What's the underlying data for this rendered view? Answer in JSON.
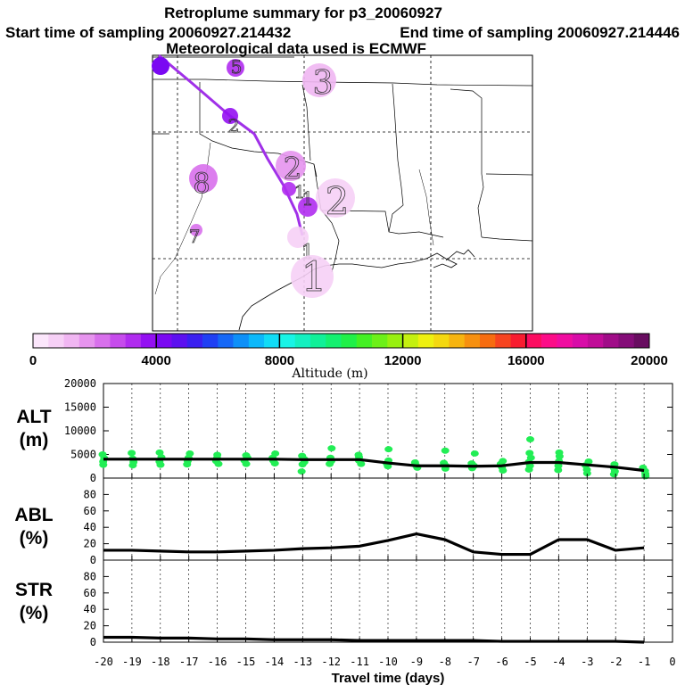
{
  "title": "Retroplume summary for p3_20060927",
  "sampling": {
    "start_label": "Start time of sampling 20060927.214432",
    "end_label": "End time of sampling 20060927.214446"
  },
  "meteo_label": "Meteorological data used is ECMWF",
  "colors": {
    "trajectory": "#a030e8",
    "cluster_light": "#f4c4f4",
    "cluster_mid": "#d890ee",
    "cluster_purple": "#b050ec",
    "cluster_deep": "#8010f0",
    "altitude_dots": "#22ee55",
    "line": "#000000"
  },
  "map": {
    "description_labels": [],
    "clusters": [
      {
        "label": "5",
        "altitude": 3200
      },
      {
        "label": "3",
        "altitude": 1400
      },
      {
        "label": "2",
        "altitude": 3800
      },
      {
        "label": "2",
        "altitude": 1800
      },
      {
        "label": "8",
        "altitude": 2000
      },
      {
        "label": "1",
        "altitude": 3000
      },
      {
        "label": "2",
        "altitude": 600
      },
      {
        "label": "7",
        "altitude": 2300
      },
      {
        "label": "1",
        "altitude": 3200
      },
      {
        "label": "1",
        "altitude": 800
      },
      {
        "label": "1",
        "altitude": 600
      }
    ]
  },
  "colorbar": {
    "ticks": [
      "0",
      "4000",
      "8000",
      "12000",
      "16000",
      "20000"
    ],
    "title": "Altitude (m)",
    "min": 0,
    "max": 20000,
    "colors": [
      "#fbe6fb",
      "#f6d0f6",
      "#f0b6f2",
      "#e694ee",
      "#d870ec",
      "#c64cec",
      "#b02cef",
      "#9410f2",
      "#7a08f2",
      "#5c10f0",
      "#3a20f0",
      "#2040f4",
      "#1668f6",
      "#0e90f8",
      "#0cb8fa",
      "#10dcf6",
      "#18f4e6",
      "#14f0c0",
      "#10f098",
      "#14f070",
      "#20f048",
      "#44f024",
      "#6cf018",
      "#98f010",
      "#c4f010",
      "#eef010",
      "#f4d810",
      "#f6b410",
      "#f69010",
      "#f66c10",
      "#f64420",
      "#f81c30",
      "#fc0c60",
      "#fc0c88",
      "#f00ca0",
      "#d80ca8",
      "#c00c98",
      "#a00c88",
      "#840c78",
      "#680c60"
    ]
  },
  "chart_data": [
    {
      "type": "line",
      "panel": "ALT",
      "ylabel": "ALT\n(m)",
      "ylabel_lines": [
        "ALT",
        "(m)"
      ],
      "ylim": [
        0,
        20000
      ],
      "yticks": [
        0,
        5000,
        10000,
        15000,
        20000
      ],
      "ytick_labels": [
        "0",
        "5000",
        "10000",
        "15000",
        "20000"
      ],
      "x": [
        -20,
        -19,
        -18,
        -17,
        -16,
        -15,
        -14,
        -13,
        -12,
        -11,
        -10,
        -9,
        -8,
        -7,
        -6,
        -5,
        -4,
        -3,
        -2,
        -1
      ],
      "series": [
        {
          "name": "median altitude",
          "values": [
            4000,
            4000,
            4000,
            4000,
            4000,
            4000,
            4000,
            3900,
            3900,
            3900,
            3200,
            2600,
            2600,
            2500,
            2600,
            3300,
            3300,
            2800,
            2300,
            1600
          ]
        }
      ],
      "scatter": [
        {
          "x": -20,
          "y": [
            2800,
            3500,
            4200,
            5000
          ]
        },
        {
          "x": -19,
          "y": [
            2700,
            3400,
            4100,
            5300
          ]
        },
        {
          "x": -18,
          "y": [
            2800,
            3500,
            4400,
            5400
          ]
        },
        {
          "x": -17,
          "y": [
            2900,
            3600,
            4300,
            5200
          ]
        },
        {
          "x": -16,
          "y": [
            3000,
            3600,
            4200,
            4900
          ]
        },
        {
          "x": -15,
          "y": [
            3000,
            3700,
            4300,
            4800
          ]
        },
        {
          "x": -14,
          "y": [
            3100,
            3700,
            4300,
            5200
          ]
        },
        {
          "x": -13,
          "y": [
            2900,
            3400,
            4000,
            4700,
            1400
          ]
        },
        {
          "x": -12,
          "y": [
            3000,
            3600,
            4300,
            6300
          ]
        },
        {
          "x": -11,
          "y": [
            3000,
            3700,
            4400,
            4900
          ]
        },
        {
          "x": -10,
          "y": [
            2500,
            3100,
            3700,
            6100
          ]
        },
        {
          "x": -9,
          "y": [
            2200,
            2700,
            3300
          ]
        },
        {
          "x": -8,
          "y": [
            2000,
            2600,
            3200,
            5800
          ]
        },
        {
          "x": -7,
          "y": [
            2100,
            2600,
            3100,
            5200
          ]
        },
        {
          "x": -6,
          "y": [
            1600,
            2300,
            3000,
            3600
          ]
        },
        {
          "x": -5,
          "y": [
            1800,
            2600,
            3400,
            4300,
            5300,
            8200
          ]
        },
        {
          "x": -4,
          "y": [
            1700,
            2600,
            3600,
            4600,
            5400
          ]
        },
        {
          "x": -3,
          "y": [
            1000,
            1800,
            2700,
            3500
          ]
        },
        {
          "x": -2,
          "y": [
            800,
            1400,
            2100,
            2900
          ]
        },
        {
          "x": -1,
          "y": [
            400,
            900,
            1500,
            2200
          ]
        }
      ]
    },
    {
      "type": "line",
      "panel": "ABL",
      "ylabel": "ABL\n(%)",
      "ylabel_lines": [
        "ABL",
        "(%)"
      ],
      "ylim": [
        0,
        100
      ],
      "yticks": [
        0,
        20,
        40,
        60,
        80
      ],
      "ytick_labels": [
        "0",
        "20",
        "40",
        "60",
        "80"
      ],
      "x": [
        -20,
        -19,
        -18,
        -17,
        -16,
        -15,
        -14,
        -13,
        -12,
        -11,
        -10,
        -9,
        -8,
        -7,
        -6,
        -5,
        -4,
        -3,
        -2,
        -1
      ],
      "series": [
        {
          "name": "ABL fraction",
          "values": [
            12,
            12,
            11,
            10,
            10,
            11,
            12,
            14,
            15,
            17,
            24,
            32,
            25,
            10,
            7,
            7,
            25,
            25,
            12,
            15
          ]
        }
      ]
    },
    {
      "type": "line",
      "panel": "STR",
      "ylabel": "STR\n(%)",
      "ylabel_lines": [
        "STR",
        "(%)"
      ],
      "ylim": [
        0,
        100
      ],
      "yticks": [
        0,
        20,
        40,
        60,
        80
      ],
      "ytick_labels": [
        "0",
        "20",
        "40",
        "60",
        "80"
      ],
      "x": [
        -20,
        -19,
        -18,
        -17,
        -16,
        -15,
        -14,
        -13,
        -12,
        -11,
        -10,
        -9,
        -8,
        -7,
        -6,
        -5,
        -4,
        -3,
        -2,
        -1
      ],
      "series": [
        {
          "name": "stratospheric fraction",
          "values": [
            6,
            6,
            5,
            5,
            4,
            4,
            3,
            3,
            3,
            2,
            2,
            2,
            2,
            2,
            1,
            1,
            1,
            1,
            1,
            0
          ]
        }
      ],
      "xlabel": "Travel time (days)",
      "xlim": [
        -20,
        0
      ],
      "xtick_labels": [
        "-20",
        "-19",
        "-18",
        "-17",
        "-16",
        "-15",
        "-14",
        "-13",
        "-12",
        "-11",
        "-10",
        "-9",
        "-8",
        "-7",
        "-6",
        "-5",
        "-4",
        "-3",
        "-2",
        "-1",
        "0"
      ]
    }
  ]
}
